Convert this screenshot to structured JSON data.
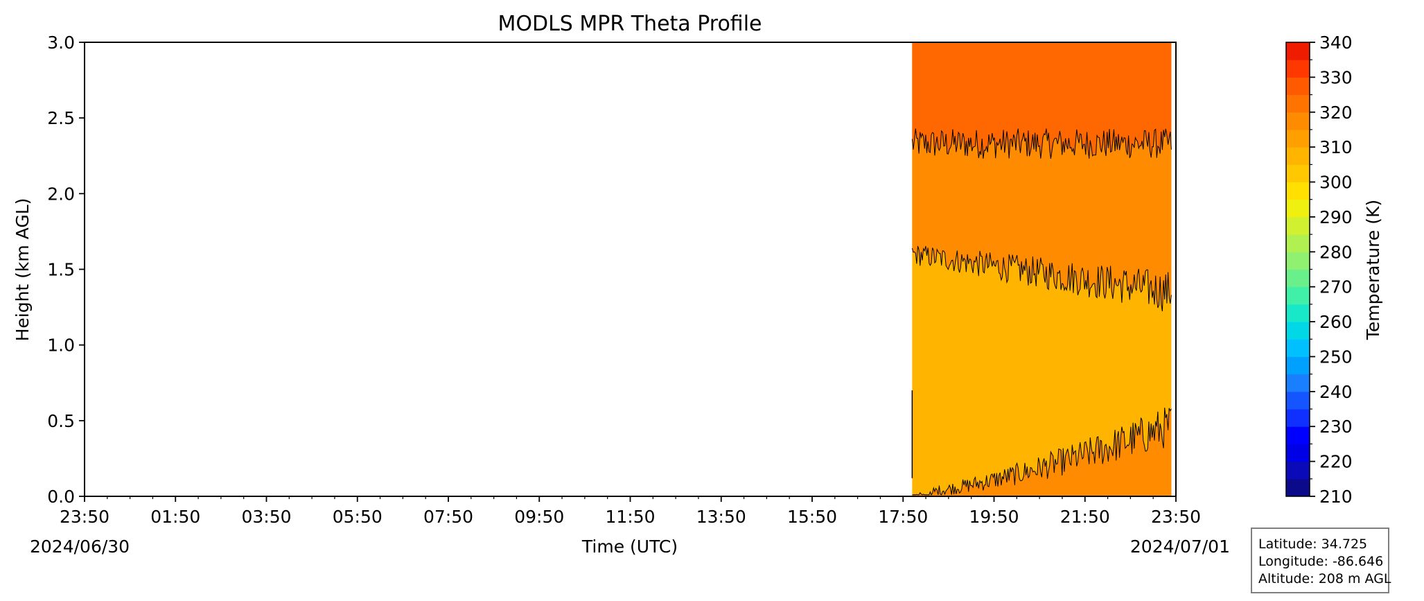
{
  "chart_data": {
    "type": "heatmap",
    "title": "MODLS MPR Theta Profile",
    "xlabel": "Time (UTC)",
    "ylabel": "Height (km AGL)",
    "x_ticks": [
      "23:50",
      "01:50",
      "03:50",
      "05:50",
      "07:50",
      "09:50",
      "11:50",
      "13:50",
      "15:50",
      "17:50",
      "19:50",
      "21:50",
      "23:50"
    ],
    "x_range_hours": [
      0,
      24
    ],
    "date_start": "2024/06/30",
    "date_end": "2024/07/01",
    "ylim": [
      0,
      3.0
    ],
    "y_ticks": [
      "0.0",
      "0.5",
      "1.0",
      "1.5",
      "2.0",
      "2.5",
      "3.0"
    ],
    "data_start_hours": 18.2,
    "data_end_hours": 23.9,
    "colorbar": {
      "label": "Temperature (K)",
      "min": 210,
      "max": 340,
      "step": 5,
      "ticks": [
        "210",
        "220",
        "230",
        "240",
        "250",
        "260",
        "270",
        "280",
        "290",
        "300",
        "310",
        "320",
        "330",
        "340"
      ],
      "colors": [
        "#0a0a8a",
        "#0a0ab8",
        "#0000e6",
        "#0000ff",
        "#1030ff",
        "#1555ff",
        "#1a7fff",
        "#00a0ff",
        "#00c0ff",
        "#00d8e8",
        "#19e8c8",
        "#40f0a8",
        "#6af08a",
        "#90f070",
        "#b0f050",
        "#d0f030",
        "#f0f010",
        "#ffe000",
        "#ffc800",
        "#ffb400",
        "#ffa000",
        "#ff8c00",
        "#ff7300",
        "#ff5a00",
        "#ff3800",
        "#f01c00",
        "#d00000",
        "#a00000"
      ]
    },
    "bands": [
      {
        "range_k": "295-300",
        "color": "#ffb400"
      },
      {
        "range_k": "300-305",
        "color": "#ff8c00"
      },
      {
        "range_k": "305-310",
        "color": "#ff6800"
      }
    ],
    "contours": [
      {
        "theta_k": 305,
        "mean_height_km": 2.33
      },
      {
        "theta_k": 300,
        "mean_height_km": 1.5
      },
      {
        "theta_k": 300,
        "mean_height_km": 0.15
      }
    ]
  },
  "info": {
    "latitude": "Latitude: 34.725",
    "longitude": "Longitude: -86.646",
    "altitude": "Altitude: 208 m AGL"
  }
}
